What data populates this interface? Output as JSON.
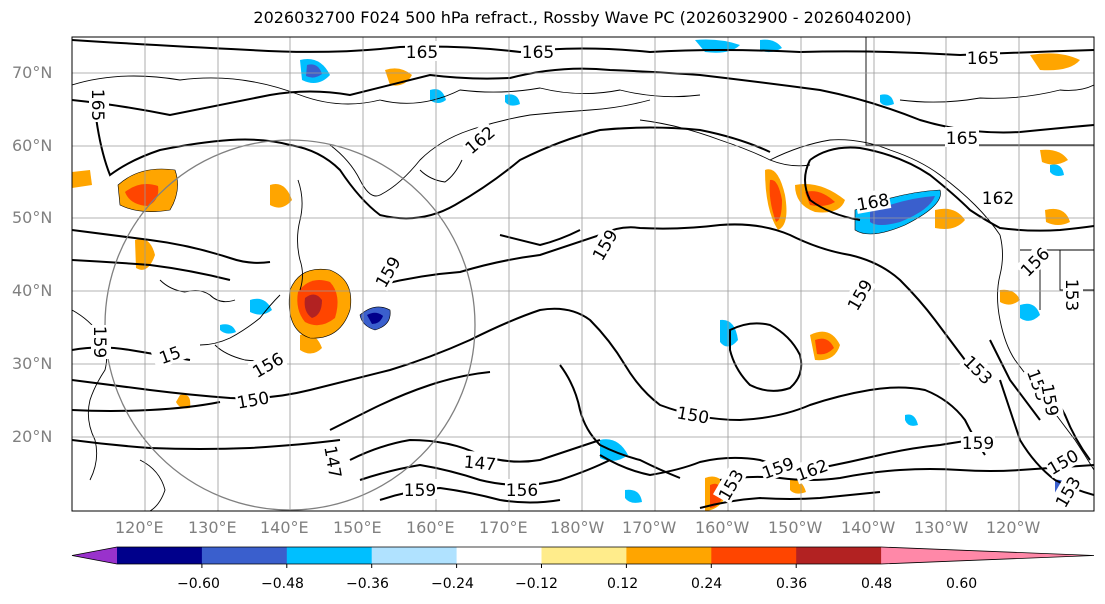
{
  "title": "2026032700 F024 500 hPa refract., Rossby Wave PC (2026032900 - 2026040200)",
  "lat_labels": [
    "70°N",
    "60°N",
    "50°N",
    "40°N",
    "30°N",
    "20°N"
  ],
  "lon_labels": [
    "120°E",
    "130°E",
    "140°E",
    "150°E",
    "160°E",
    "170°E",
    "180°W",
    "170°W",
    "160°W",
    "150°W",
    "140°W",
    "130°W",
    "120°W"
  ],
  "colorbar": {
    "colors": [
      "#9932cc",
      "#00008b",
      "#3a5fcd",
      "#00bfff",
      "#b0e2ff",
      "#ffffff",
      "#ffec8b",
      "#ffa500",
      "#ff4500",
      "#b22222",
      "#ff88a8"
    ],
    "under_color": "#9932cc",
    "over_color": "#ff88a8",
    "tick_labels": [
      "−0.60",
      "−0.48",
      "−0.36",
      "−0.24",
      "−0.12",
      "0.12",
      "0.24",
      "0.36",
      "0.48",
      "0.60"
    ]
  },
  "contour_labels": [
    {
      "text": "165",
      "rotate": 0
    },
    {
      "text": "165",
      "rotate": 0
    },
    {
      "text": "165",
      "rotate": 0
    },
    {
      "text": "165",
      "rotate": 90
    },
    {
      "text": "165",
      "rotate": 0
    },
    {
      "text": "162",
      "rotate": -40
    },
    {
      "text": "162",
      "rotate": 0
    },
    {
      "text": "168",
      "rotate": -10
    },
    {
      "text": "159",
      "rotate": -60
    },
    {
      "text": "159",
      "rotate": -60
    },
    {
      "text": "159",
      "rotate": -60
    },
    {
      "text": "156",
      "rotate": -45
    },
    {
      "text": "153",
      "rotate": 90
    },
    {
      "text": "156",
      "rotate": -30
    },
    {
      "text": "150",
      "rotate": -10
    },
    {
      "text": "150",
      "rotate": 10
    },
    {
      "text": "153",
      "rotate": 45
    },
    {
      "text": "159",
      "rotate": 0
    },
    {
      "text": "147",
      "rotate": 5
    },
    {
      "text": "156",
      "rotate": 0
    },
    {
      "text": "159",
      "rotate": 0
    },
    {
      "text": "159",
      "rotate": -20
    },
    {
      "text": "162",
      "rotate": -20
    },
    {
      "text": "153",
      "rotate": -60
    },
    {
      "text": "150",
      "rotate": -30
    },
    {
      "text": "153",
      "rotate": -60
    },
    {
      "text": "159",
      "rotate": 90
    },
    {
      "text": "147",
      "rotate": 80
    },
    {
      "text": "15",
      "rotate": -20
    },
    {
      "text": "153",
      "rotate": 70
    },
    {
      "text": "159",
      "rotate": 80
    }
  ]
}
